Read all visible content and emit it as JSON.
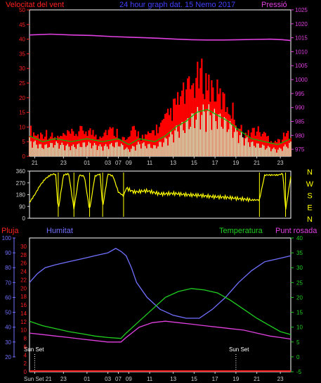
{
  "colors": {
    "wind": "#ff2020",
    "gust": "#ff0000",
    "wind_avg": "#00c000",
    "wind_min": "#ccffcc",
    "pressure": "#e040e0",
    "direction": "#ffff00",
    "rain": "#ff2020",
    "humidity": "#7070ff",
    "temperature": "#20d020",
    "dewpoint": "#e040e0",
    "axis": "#d0d0d0",
    "frame": "#ffffff",
    "grid": "#888888"
  },
  "chart_data": [
    {
      "type": "area",
      "name": "wind",
      "title": "24 hour graph dat.  15 Nemo 2017",
      "left_label": "Velocitat del vent",
      "right_label": "Pressió",
      "xlabels": [
        "21",
        "23",
        "01",
        "03",
        "07",
        "09",
        "11",
        "13",
        "15",
        "17",
        "19",
        "21",
        "23"
      ],
      "ylim": [
        0,
        50
      ],
      "yticks": [
        0,
        5,
        10,
        15,
        20,
        25,
        30,
        35,
        40,
        45,
        50
      ],
      "y2lim": [
        972.5,
        1025
      ],
      "y2ticks": [
        975,
        980,
        985,
        990,
        995,
        1000,
        1005,
        1010,
        1015,
        1020,
        1025
      ],
      "series": [
        {
          "name": "gust",
          "x": [
            0,
            0.03,
            0.06,
            0.1,
            0.14,
            0.18,
            0.22,
            0.26,
            0.3,
            0.34,
            0.37,
            0.4,
            0.44,
            0.48,
            0.5,
            0.52,
            0.55,
            0.58,
            0.61,
            0.63,
            0.66,
            0.69,
            0.72,
            0.75,
            0.78,
            0.8,
            0.83,
            0.86,
            0.89,
            0.92,
            0.95,
            0.98,
            1
          ],
          "values": [
            9,
            7,
            8,
            6,
            7,
            8,
            9,
            7,
            9,
            8,
            5,
            9,
            6,
            9,
            10,
            12,
            16,
            20,
            22,
            25,
            27,
            24,
            21,
            18,
            15,
            10,
            7,
            9,
            8,
            6,
            5,
            7,
            8
          ]
        },
        {
          "name": "avg",
          "x": [
            0,
            0.05,
            0.1,
            0.16,
            0.22,
            0.28,
            0.34,
            0.38,
            0.42,
            0.48,
            0.52,
            0.56,
            0.6,
            0.64,
            0.68,
            0.72,
            0.76,
            0.8,
            0.85,
            0.9,
            0.95,
            1
          ],
          "values": [
            7,
            5,
            6,
            5,
            6,
            5,
            6,
            4,
            6,
            5,
            7,
            10,
            12,
            15,
            16,
            14,
            12,
            9,
            6,
            5,
            4,
            6
          ]
        },
        {
          "name": "min",
          "x": [
            0,
            0.05,
            0.1,
            0.16,
            0.22,
            0.28,
            0.34,
            0.38,
            0.42,
            0.48,
            0.52,
            0.56,
            0.6,
            0.64,
            0.68,
            0.72,
            0.76,
            0.8,
            0.85,
            0.9,
            0.95,
            1
          ],
          "values": [
            5,
            3,
            4,
            3,
            4,
            3,
            4,
            2,
            4,
            3,
            5,
            8,
            10,
            13,
            14,
            12,
            10,
            7,
            4,
            3,
            2,
            4
          ]
        },
        {
          "name": "pressure",
          "x": [
            0,
            0.08,
            0.16,
            0.24,
            0.32,
            0.38,
            0.44,
            0.5,
            0.56,
            0.62,
            0.68,
            0.74,
            0.8,
            0.86,
            0.92,
            0.97,
            1
          ],
          "values": [
            1016,
            1016.3,
            1016,
            1015.8,
            1015.4,
            1015.2,
            1015,
            1014.8,
            1014.5,
            1014.3,
            1014.2,
            1014.2,
            1014.3,
            1014.4,
            1014.5,
            1014.3,
            1014
          ]
        }
      ]
    },
    {
      "type": "line",
      "name": "wind direction",
      "yticks": [
        0,
        90,
        180,
        270,
        360
      ],
      "ylim": [
        0,
        360
      ],
      "compass": [
        "N",
        "W",
        "S",
        "E",
        "N"
      ],
      "series": [
        {
          "name": "direction",
          "x": [
            0,
            0.02,
            0.04,
            0.06,
            0.08,
            0.1,
            0.11,
            0.13,
            0.15,
            0.17,
            0.19,
            0.21,
            0.23,
            0.25,
            0.27,
            0.28,
            0.3,
            0.32,
            0.34,
            0.36,
            0.37,
            0.4,
            0.45,
            0.5,
            0.55,
            0.6,
            0.65,
            0.7,
            0.75,
            0.8,
            0.85,
            0.88,
            0.9,
            0.95,
            0.97,
            0.98,
            1
          ],
          "values": [
            120,
            180,
            250,
            300,
            330,
            340,
            60,
            330,
            340,
            70,
            330,
            320,
            60,
            320,
            340,
            80,
            340,
            320,
            200,
            170,
            230,
            200,
            210,
            185,
            190,
            180,
            175,
            165,
            160,
            150,
            140,
            140,
            330,
            330,
            340,
            60,
            320
          ]
        }
      ]
    },
    {
      "type": "line",
      "name": "humidity temperature",
      "labels": {
        "rain": "Pluja",
        "humidity": "Humitat",
        "temperature": "Temperatura",
        "dewpoint": "Punt rosada"
      },
      "annotations": [
        "Sun Set",
        "Sun Set"
      ],
      "xlabels": [
        "Sun Set 21",
        "23",
        "01",
        "03",
        "07",
        "09",
        "11",
        "13",
        "15",
        "17",
        "19",
        "21",
        "23"
      ],
      "humidity_ticks": [
        20,
        30,
        40,
        50,
        60,
        70,
        80,
        90,
        100
      ],
      "humidity_lim": [
        20,
        100
      ],
      "rain_ticks": [
        0,
        2,
        4,
        6,
        8,
        10,
        12,
        14,
        16,
        18,
        20,
        22,
        24,
        26,
        28,
        30
      ],
      "rain_lim": [
        0,
        30
      ],
      "temp_ticks": [
        -5,
        0,
        5,
        10,
        15,
        20,
        25,
        30,
        35,
        40
      ],
      "temp_lim": [
        -5,
        40
      ],
      "series": [
        {
          "name": "humidity",
          "x": [
            0,
            0.03,
            0.06,
            0.1,
            0.15,
            0.2,
            0.25,
            0.3,
            0.33,
            0.35,
            0.37,
            0.39,
            0.41,
            0.45,
            0.5,
            0.55,
            0.6,
            0.65,
            0.7,
            0.75,
            0.8,
            0.85,
            0.9,
            0.95,
            1
          ],
          "values": [
            70,
            76,
            80,
            82,
            84,
            86,
            88,
            90,
            93,
            91,
            88,
            80,
            70,
            60,
            52,
            48,
            46,
            46,
            52,
            60,
            70,
            78,
            84,
            86,
            88
          ]
        },
        {
          "name": "temperature",
          "x": [
            0,
            0.05,
            0.1,
            0.15,
            0.2,
            0.25,
            0.3,
            0.35,
            0.37,
            0.42,
            0.47,
            0.52,
            0.57,
            0.62,
            0.67,
            0.72,
            0.77,
            0.82,
            0.87,
            0.92,
            0.96,
            1
          ],
          "values": [
            12,
            10.5,
            9.5,
            8.5,
            7.8,
            7,
            6.5,
            6.2,
            8,
            12,
            16,
            20,
            22,
            23,
            22.5,
            21.5,
            19,
            16,
            13,
            10.5,
            8.5,
            7.5
          ]
        },
        {
          "name": "dewpoint",
          "x": [
            0,
            0.05,
            0.1,
            0.15,
            0.2,
            0.25,
            0.3,
            0.35,
            0.37,
            0.42,
            0.47,
            0.52,
            0.57,
            0.62,
            0.67,
            0.72,
            0.77,
            0.82,
            0.87,
            0.92,
            0.96,
            1
          ],
          "values": [
            8,
            7.5,
            7,
            6.5,
            6,
            5.5,
            5,
            5,
            6.5,
            10,
            11.5,
            12,
            11.5,
            11,
            10.5,
            10,
            9.5,
            9,
            8,
            7,
            6.5,
            6
          ]
        },
        {
          "name": "rain",
          "x": [
            0,
            1
          ],
          "values": [
            0,
            0
          ]
        }
      ]
    }
  ]
}
